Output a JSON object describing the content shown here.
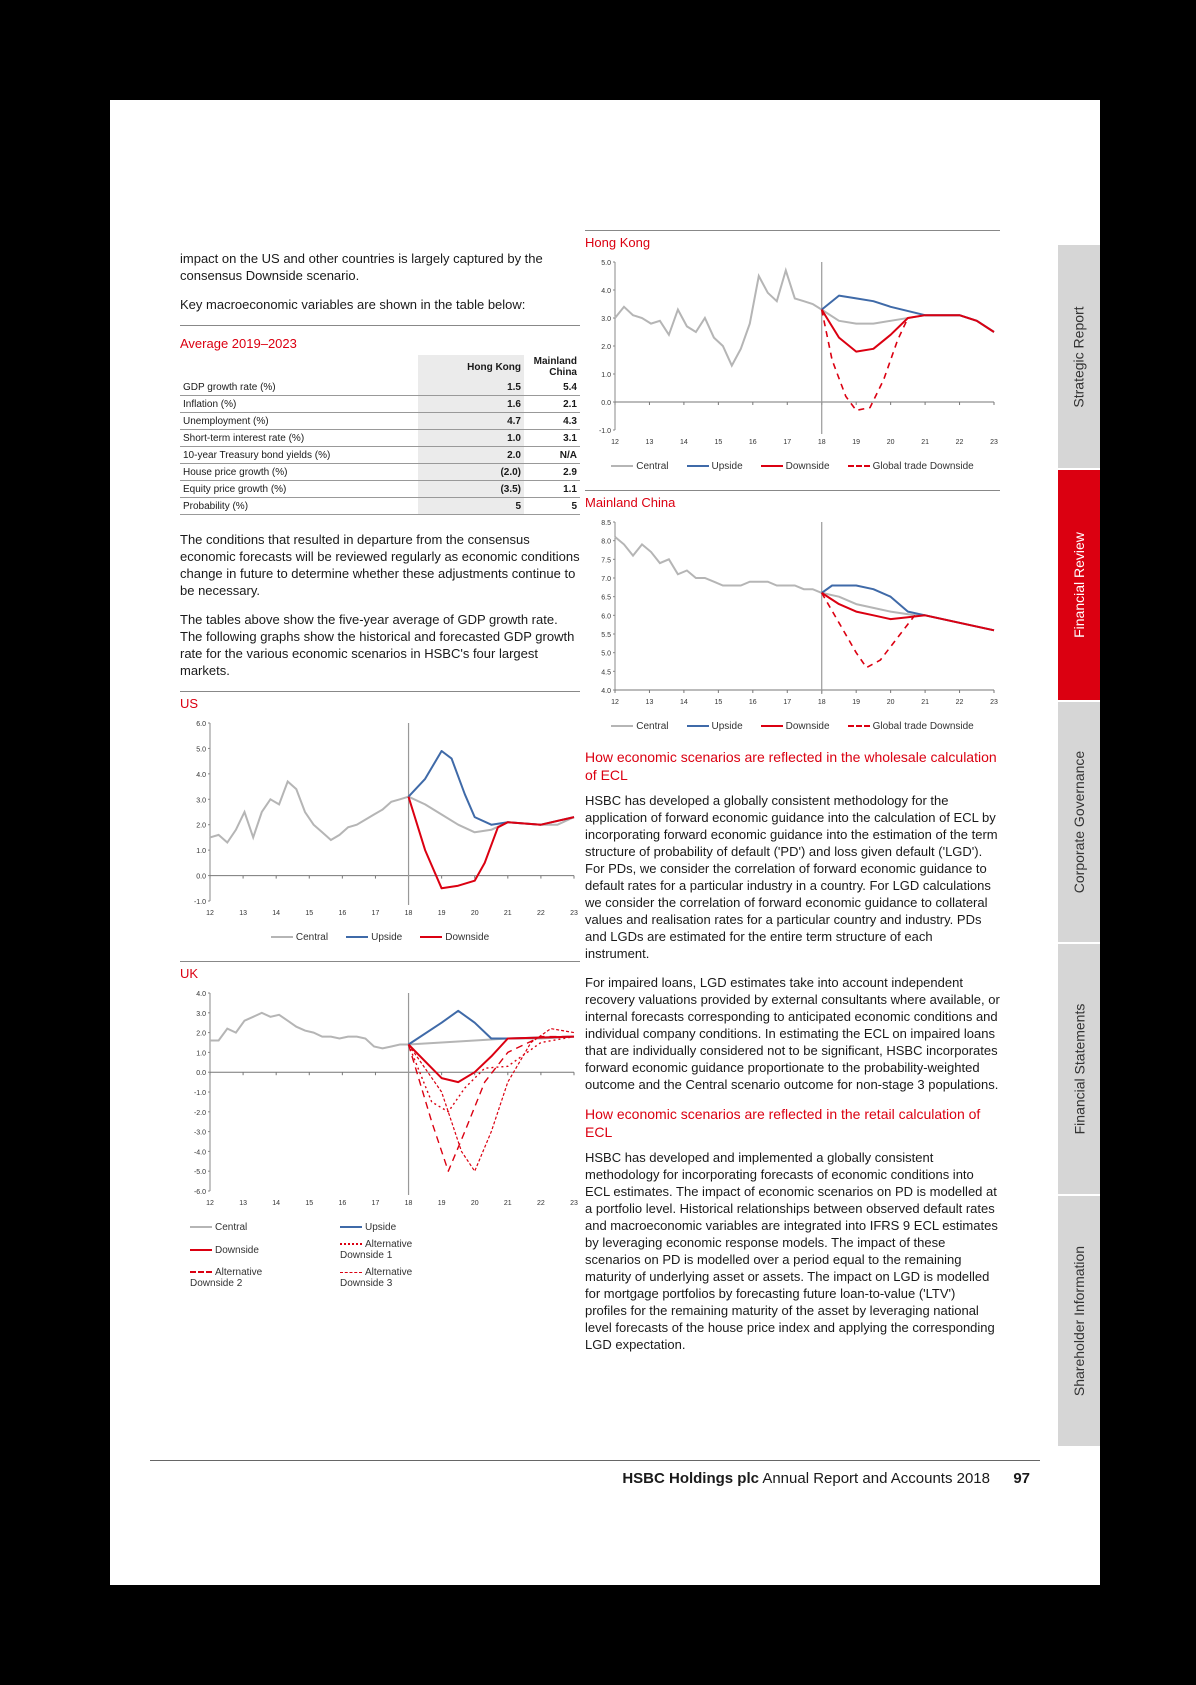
{
  "intro": {
    "p1": "impact on the US and other countries is largely captured by the consensus Downside scenario.",
    "p2": "Key macroeconomic variables are shown in the table below:"
  },
  "table": {
    "title": "Average 2019–2023",
    "col1": "Hong Kong",
    "col2": "Mainland China",
    "rows": [
      {
        "label": "GDP growth rate (%)",
        "hk": "1.5",
        "cn": "5.4"
      },
      {
        "label": "Inflation (%)",
        "hk": "1.6",
        "cn": "2.1"
      },
      {
        "label": "Unemployment (%)",
        "hk": "4.7",
        "cn": "4.3"
      },
      {
        "label": "Short-term interest rate (%)",
        "hk": "1.0",
        "cn": "3.1"
      },
      {
        "label": "10-year Treasury bond yields (%)",
        "hk": "2.0",
        "cn": "N/A"
      },
      {
        "label": "House price growth (%)",
        "hk": "(2.0)",
        "cn": "2.9"
      },
      {
        "label": "Equity price growth (%)",
        "hk": "(3.5)",
        "cn": "1.1"
      },
      {
        "label": "Probability (%)",
        "hk": "5",
        "cn": "5"
      }
    ]
  },
  "text_left": {
    "p3": "The conditions that resulted in departure from the consensus economic forecasts will be reviewed regularly as economic conditions change in future to determine whether these adjustments continue to be necessary.",
    "p4": "The tables above show the five-year average of GDP growth rate. The following graphs show the historical and forecasted GDP growth rate for the various economic scenarios in HSBC's four largest markets."
  },
  "colors": {
    "central": "#b5b5b5",
    "upside": "#3f6aa8",
    "downside": "#db0011",
    "accent": "#db0011"
  },
  "chart_data": [
    {
      "type": "line",
      "title": "US",
      "x": [
        "12",
        "13",
        "14",
        "15",
        "16",
        "17",
        "18",
        "19",
        "20",
        "21",
        "22",
        "23"
      ],
      "ylim": [
        -1.0,
        6.0
      ],
      "yticks": [
        "-1.0",
        "0.0",
        "1.0",
        "2.0",
        "3.0",
        "4.0",
        "5.0",
        "6.0"
      ],
      "history": [
        1.5,
        1.6,
        1.3,
        1.8,
        2.5,
        1.5,
        2.5,
        3.0,
        2.8,
        3.7,
        3.4,
        2.5,
        2.0,
        1.7,
        1.4,
        1.6,
        1.9,
        2.0,
        2.2,
        2.4,
        2.6,
        2.9,
        3.0,
        3.1
      ],
      "series": [
        {
          "name": "Central",
          "points": [
            [
              18,
              3.1
            ],
            [
              18.5,
              2.8
            ],
            [
              19,
              2.4
            ],
            [
              19.5,
              2.0
            ],
            [
              20,
              1.7
            ],
            [
              20.5,
              1.8
            ],
            [
              21,
              2.1
            ],
            [
              22,
              2.0
            ],
            [
              22.5,
              2.0
            ],
            [
              23,
              2.3
            ]
          ]
        },
        {
          "name": "Upside",
          "points": [
            [
              18,
              3.1
            ],
            [
              18.5,
              3.8
            ],
            [
              19,
              4.9
            ],
            [
              19.3,
              4.6
            ],
            [
              19.7,
              3.2
            ],
            [
              20,
              2.3
            ],
            [
              20.5,
              2.0
            ],
            [
              21,
              2.1
            ],
            [
              22,
              2.0
            ],
            [
              23,
              2.3
            ]
          ]
        },
        {
          "name": "Downside",
          "points": [
            [
              18,
              3.1
            ],
            [
              18.5,
              1.0
            ],
            [
              19,
              -0.5
            ],
            [
              19.5,
              -0.4
            ],
            [
              20,
              -0.2
            ],
            [
              20.3,
              0.5
            ],
            [
              20.7,
              1.9
            ],
            [
              21,
              2.1
            ],
            [
              22,
              2.0
            ],
            [
              23,
              2.3
            ]
          ]
        }
      ]
    },
    {
      "type": "line",
      "title": "UK",
      "x": [
        "12",
        "13",
        "14",
        "15",
        "16",
        "17",
        "18",
        "19",
        "20",
        "21",
        "22",
        "23"
      ],
      "ylim": [
        -6.0,
        4.0
      ],
      "yticks": [
        "-6.0",
        "-5.0",
        "-4.0",
        "-3.0",
        "-2.0",
        "-1.0",
        "0.0",
        "1.0",
        "2.0",
        "3.0",
        "4.0"
      ],
      "history": [
        1.6,
        1.6,
        2.2,
        2.0,
        2.6,
        2.8,
        3.0,
        2.8,
        2.9,
        2.6,
        2.3,
        2.1,
        2.0,
        1.8,
        1.8,
        1.7,
        1.8,
        1.8,
        1.7,
        1.3,
        1.2,
        1.3,
        1.4,
        1.4
      ],
      "series": [
        {
          "name": "Central",
          "points": [
            [
              18,
              1.4
            ],
            [
              19,
              1.5
            ],
            [
              20,
              1.6
            ],
            [
              21,
              1.7
            ],
            [
              22,
              1.7
            ],
            [
              23,
              1.8
            ]
          ]
        },
        {
          "name": "Upside",
          "points": [
            [
              18,
              1.4
            ],
            [
              19,
              2.5
            ],
            [
              19.5,
              3.1
            ],
            [
              20,
              2.5
            ],
            [
              20.5,
              1.7
            ],
            [
              21,
              1.7
            ],
            [
              23,
              1.8
            ]
          ]
        },
        {
          "name": "Downside",
          "points": [
            [
              18,
              1.4
            ],
            [
              19,
              -0.3
            ],
            [
              19.5,
              -0.5
            ],
            [
              20,
              0.0
            ],
            [
              20.5,
              0.8
            ],
            [
              21,
              1.7
            ],
            [
              23,
              1.8
            ]
          ]
        },
        {
          "name": "Alternative Downside 1",
          "points": [
            [
              18,
              1.4
            ],
            [
              18.7,
              -1.5
            ],
            [
              19.2,
              -2.0
            ],
            [
              19.7,
              -0.8
            ],
            [
              20.3,
              0.2
            ],
            [
              21,
              0.3
            ],
            [
              22,
              1.5
            ],
            [
              23,
              1.8
            ]
          ]
        },
        {
          "name": "Alternative Downside 2",
          "points": [
            [
              18,
              1.4
            ],
            [
              18.7,
              -2.5
            ],
            [
              19.2,
              -5.0
            ],
            [
              19.7,
              -3.0
            ],
            [
              20.3,
              -0.5
            ],
            [
              21,
              1.0
            ],
            [
              22,
              1.8
            ],
            [
              23,
              1.8
            ]
          ]
        },
        {
          "name": "Alternative Downside 3",
          "points": [
            [
              18,
              1.4
            ],
            [
              19,
              -1.0
            ],
            [
              19.6,
              -4.0
            ],
            [
              20,
              -5.0
            ],
            [
              20.5,
              -3.0
            ],
            [
              21,
              -0.5
            ],
            [
              21.7,
              1.5
            ],
            [
              22.3,
              2.2
            ],
            [
              23,
              2.0
            ]
          ]
        }
      ]
    },
    {
      "type": "line",
      "title": "Hong Kong",
      "x": [
        "12",
        "13",
        "14",
        "15",
        "16",
        "17",
        "18",
        "19",
        "20",
        "21",
        "22",
        "23"
      ],
      "ylim": [
        -1.0,
        5.0
      ],
      "yticks": [
        "-1.0",
        "0.0",
        "1.0",
        "2.0",
        "3.0",
        "4.0",
        "5.0"
      ],
      "history": [
        3.0,
        3.4,
        3.1,
        3.0,
        2.8,
        2.9,
        2.4,
        3.3,
        2.7,
        2.5,
        3.0,
        2.3,
        2.0,
        1.3,
        1.9,
        2.8,
        4.5,
        3.9,
        3.6,
        4.7,
        3.7,
        3.6,
        3.5,
        3.3
      ],
      "series": [
        {
          "name": "Central",
          "points": [
            [
              18,
              3.3
            ],
            [
              18.5,
              2.9
            ],
            [
              19,
              2.8
            ],
            [
              19.5,
              2.8
            ],
            [
              20,
              2.9
            ],
            [
              21,
              3.1
            ],
            [
              22,
              3.1
            ],
            [
              22.5,
              2.9
            ],
            [
              23,
              2.5
            ]
          ]
        },
        {
          "name": "Upside",
          "points": [
            [
              18,
              3.3
            ],
            [
              18.5,
              3.8
            ],
            [
              19,
              3.7
            ],
            [
              19.5,
              3.6
            ],
            [
              20,
              3.4
            ],
            [
              21,
              3.1
            ],
            [
              22,
              3.1
            ],
            [
              22.5,
              2.9
            ],
            [
              23,
              2.5
            ]
          ]
        },
        {
          "name": "Downside",
          "points": [
            [
              18,
              3.3
            ],
            [
              18.5,
              2.3
            ],
            [
              19,
              1.8
            ],
            [
              19.5,
              1.9
            ],
            [
              20,
              2.4
            ],
            [
              20.5,
              3.0
            ],
            [
              21,
              3.1
            ],
            [
              22,
              3.1
            ],
            [
              22.5,
              2.9
            ],
            [
              23,
              2.5
            ]
          ]
        },
        {
          "name": "Global trade Downside",
          "points": [
            [
              18,
              3.3
            ],
            [
              18.3,
              1.5
            ],
            [
              18.7,
              0.2
            ],
            [
              19,
              -0.3
            ],
            [
              19.4,
              -0.2
            ],
            [
              19.8,
              0.8
            ],
            [
              20.2,
              2.2
            ],
            [
              20.5,
              3.0
            ]
          ]
        }
      ]
    },
    {
      "type": "line",
      "title": "Mainland China",
      "x": [
        "12",
        "13",
        "14",
        "15",
        "16",
        "17",
        "18",
        "19",
        "20",
        "21",
        "22",
        "23"
      ],
      "ylim": [
        4.0,
        8.5
      ],
      "yticks": [
        "4.0",
        "4.5",
        "5.0",
        "5.5",
        "6.0",
        "6.5",
        "7.0",
        "7.5",
        "8.0",
        "8.5"
      ],
      "history": [
        8.1,
        7.9,
        7.6,
        7.9,
        7.7,
        7.4,
        7.5,
        7.1,
        7.2,
        7.0,
        7.0,
        6.9,
        6.8,
        6.8,
        6.8,
        6.9,
        6.9,
        6.9,
        6.8,
        6.8,
        6.8,
        6.7,
        6.7,
        6.6
      ],
      "series": [
        {
          "name": "Central",
          "points": [
            [
              18,
              6.6
            ],
            [
              18.5,
              6.5
            ],
            [
              19,
              6.3
            ],
            [
              19.5,
              6.2
            ],
            [
              20,
              6.1
            ],
            [
              20.7,
              6.0
            ],
            [
              21,
              6.0
            ],
            [
              22,
              5.8
            ],
            [
              23,
              5.6
            ]
          ]
        },
        {
          "name": "Upside",
          "points": [
            [
              18,
              6.6
            ],
            [
              18.3,
              6.8
            ],
            [
              19,
              6.8
            ],
            [
              19.5,
              6.7
            ],
            [
              20,
              6.5
            ],
            [
              20.5,
              6.1
            ],
            [
              21,
              6.0
            ],
            [
              22,
              5.8
            ],
            [
              23,
              5.6
            ]
          ]
        },
        {
          "name": "Downside",
          "points": [
            [
              18,
              6.6
            ],
            [
              18.5,
              6.3
            ],
            [
              19,
              6.1
            ],
            [
              19.5,
              6.0
            ],
            [
              20,
              5.9
            ],
            [
              20.5,
              5.95
            ],
            [
              21,
              6.0
            ],
            [
              22,
              5.8
            ],
            [
              23,
              5.6
            ]
          ]
        },
        {
          "name": "Global trade Downside",
          "points": [
            [
              18,
              6.6
            ],
            [
              18.5,
              5.8
            ],
            [
              19,
              5.0
            ],
            [
              19.3,
              4.6
            ],
            [
              19.7,
              4.8
            ],
            [
              20.2,
              5.4
            ],
            [
              20.7,
              6.0
            ]
          ]
        }
      ]
    }
  ],
  "legend_labels": {
    "central": "Central",
    "upside": "Upside",
    "downside": "Downside",
    "global": "Global trade Downside",
    "alt1": "Alternative Downside 1",
    "alt2": "Alternative Downside 2",
    "alt3": "Alternative Downside 3"
  },
  "section1": {
    "heading": "How economic scenarios are reflected in the wholesale calculation of ECL",
    "p1": "HSBC has developed a globally consistent methodology for the application of forward economic guidance into the calculation of ECL by incorporating forward economic guidance into the estimation of the term structure of probability of default ('PD') and loss given default ('LGD'). For PDs, we consider the correlation of forward economic guidance to default rates for a particular industry in a country. For LGD calculations we consider the correlation of forward economic guidance to collateral values and realisation rates for a particular country and industry. PDs and LGDs are estimated for the entire term structure of each instrument.",
    "p2": "For impaired loans, LGD estimates take into account independent recovery valuations provided by external consultants where available, or internal forecasts corresponding to anticipated economic conditions and individual company conditions. In estimating the ECL on impaired loans that are individually considered not to be significant, HSBC incorporates forward economic guidance proportionate to the probability-weighted outcome and the Central scenario outcome for non-stage 3 populations."
  },
  "section2": {
    "heading": "How economic scenarios are reflected in the retail calculation of ECL",
    "p1": "HSBC has developed and implemented a globally consistent methodology for incorporating forecasts of economic conditions into ECL estimates. The impact of economic scenarios on PD is modelled at a portfolio level. Historical relationships between observed default rates and macroeconomic variables are integrated into IFRS 9 ECL estimates by leveraging economic response models. The impact of these scenarios on PD is modelled over a period equal to the remaining maturity of underlying asset or assets. The impact on LGD is modelled for mortgage portfolios by forecasting future loan-to-value ('LTV') profiles for the remaining maturity of the asset by leveraging national level forecasts of the house price index and applying the corresponding LGD expectation."
  },
  "tabs": [
    "Strategic Report",
    "Financial Review",
    "Corporate Governance",
    "Financial Statements",
    "Shareholder Information"
  ],
  "footer": {
    "company": "HSBC Holdings plc",
    "title": "Annual Report and Accounts 2018",
    "page": "97"
  }
}
